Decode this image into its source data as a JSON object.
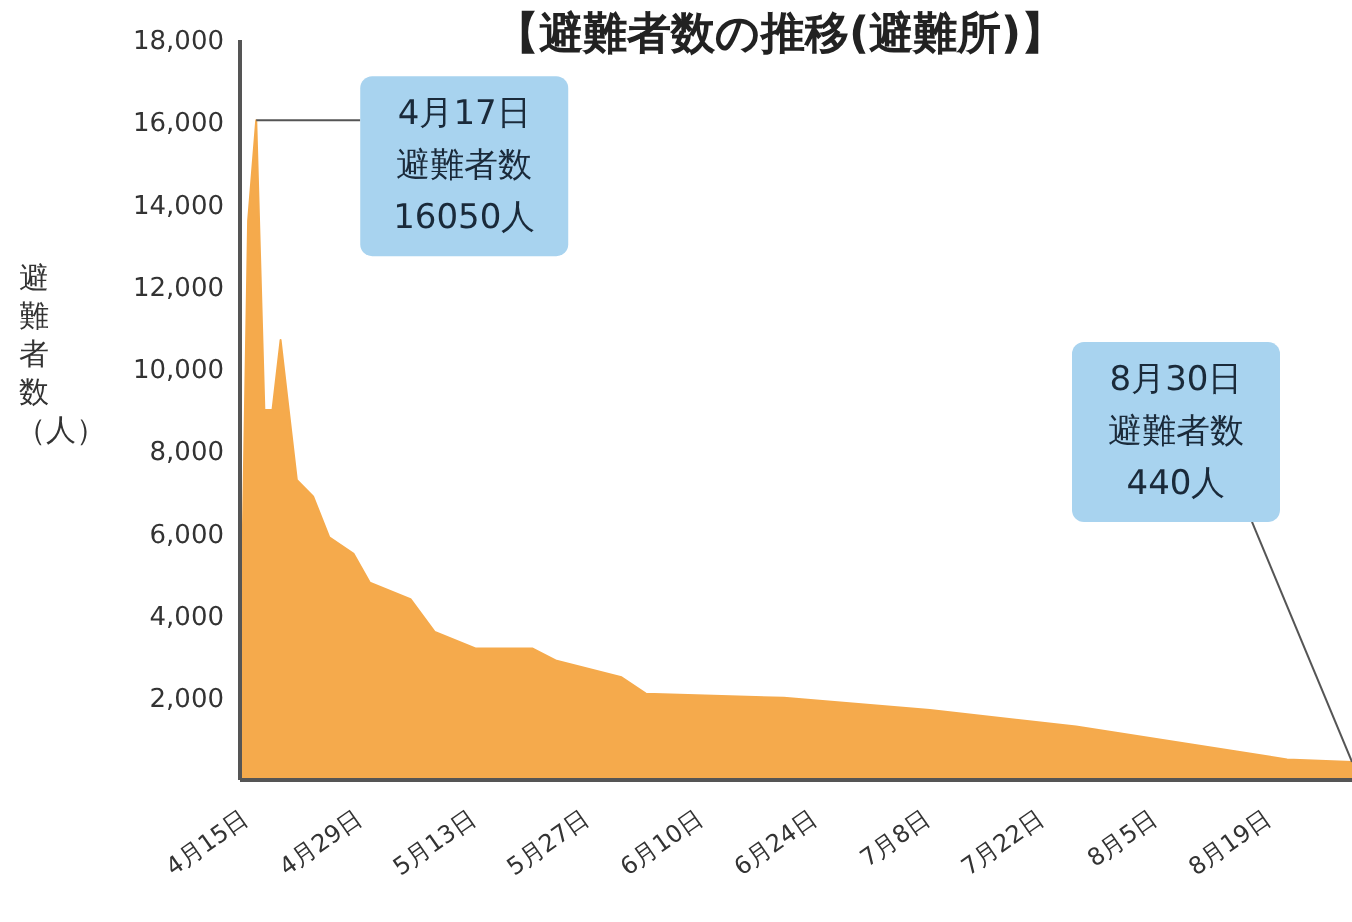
{
  "chart_data": {
    "type": "area",
    "title": "【避難者数の推移(避難所)】",
    "ylabel": "避難者数（人）",
    "x": [
      "--04-15",
      "--04-16",
      "--04-17",
      "--04-18",
      "--04-19",
      "--04-20",
      "--04-21",
      "--04-22",
      "--04-24",
      "--04-26",
      "--04-29",
      "--05-01",
      "--05-06",
      "--05-09",
      "--05-14",
      "--05-21",
      "--05-24",
      "--06-01",
      "--06-04",
      "--06-21",
      "--07-09",
      "--07-27",
      "--08-14",
      "--08-22",
      "--08-30"
    ],
    "series": [
      {
        "color": "#f5aa4c",
        "values": [
          1850,
          13600,
          16050,
          9000,
          9000,
          10700,
          9000,
          7300,
          6900,
          5900,
          5500,
          4800,
          4400,
          3600,
          3200,
          3200,
          2900,
          2500,
          2100,
          2000,
          1700,
          1300,
          750,
          500,
          440
        ]
      }
    ],
    "xlim": [
      "--04-15",
      "--08-30"
    ],
    "xticks": [
      {
        "value": "--04-15",
        "label": "4月15日"
      },
      {
        "value": "--04-29",
        "label": "4月29日"
      },
      {
        "value": "--05-13",
        "label": "5月13日"
      },
      {
        "value": "--05-27",
        "label": "5月27日"
      },
      {
        "value": "--06-10",
        "label": "6月10日"
      },
      {
        "value": "--06-24",
        "label": "6月24日"
      },
      {
        "value": "--07-08",
        "label": "7月8日"
      },
      {
        "value": "--07-22",
        "label": "7月22日"
      },
      {
        "value": "--08-05",
        "label": "8月5日"
      },
      {
        "value": "--08-19",
        "label": "8月19日"
      }
    ],
    "ylim": [
      0,
      18000
    ],
    "yticks": [
      {
        "value": 2000,
        "label": "2,000"
      },
      {
        "value": 4000,
        "label": "4,000"
      },
      {
        "value": 6000,
        "label": "6,000"
      },
      {
        "value": 8000,
        "label": "8,000"
      },
      {
        "value": 10000,
        "label": "10,000"
      },
      {
        "value": 12000,
        "label": "12,000"
      },
      {
        "value": 14000,
        "label": "14,000"
      },
      {
        "value": 16000,
        "label": "16,000"
      },
      {
        "value": 18000,
        "label": "18,000"
      }
    ],
    "grid": false,
    "legend": false,
    "annotations": [
      {
        "text": "4月17日避難者数16050人",
        "x": "--04-17",
        "y": 16050
      },
      {
        "text": "8月30日避難者数440人",
        "x": "--08-30",
        "y": 440
      }
    ]
  }
}
